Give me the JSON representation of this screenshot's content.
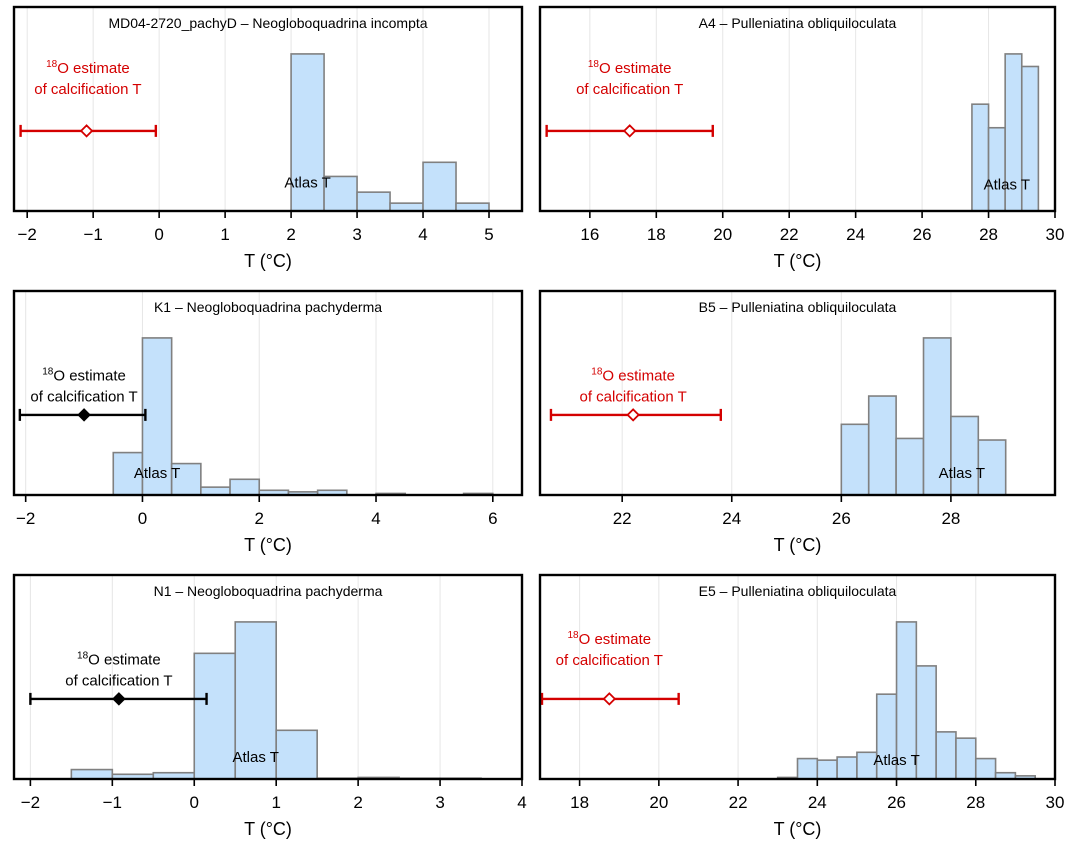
{
  "figure": {
    "background": "#ffffff"
  },
  "style": {
    "bar_fill": "#c4e1fb",
    "bar_stroke": "#808080",
    "red": "#d40000",
    "black": "#000000",
    "grid": "#e6e6e6"
  },
  "chart_data": [
    {
      "type": "bar",
      "title": "MD04-2720_pachyD – Neogloboquadrina incompta",
      "xlabel": "T (°C)",
      "xlim": [
        -2.2,
        5.5
      ],
      "xticks": [
        -2,
        -1,
        0,
        1,
        2,
        3,
        4,
        5
      ],
      "ymax": 1.0,
      "bins": [
        {
          "x0": 2.0,
          "x1": 2.5,
          "value": 1.0
        },
        {
          "x0": 2.5,
          "x1": 3.0,
          "value": 0.22
        },
        {
          "x0": 3.0,
          "x1": 3.5,
          "value": 0.12
        },
        {
          "x0": 3.5,
          "x1": 4.0,
          "value": 0.05
        },
        {
          "x0": 4.0,
          "x1": 4.5,
          "value": 0.31
        },
        {
          "x0": 4.5,
          "x1": 5.0,
          "value": 0.05
        }
      ],
      "bar_label": {
        "text": "Atlas T",
        "x": 2.25,
        "y": 0.18
      },
      "estimate": {
        "low": -2.1,
        "center": -1.1,
        "high": -0.05,
        "y": 0.51,
        "marker": "open",
        "color": "#d40000",
        "label_line1": "O estimate",
        "label_sup": "18",
        "label_line2": "of calcification T",
        "label_x": -1.08,
        "label_y": 0.88
      }
    },
    {
      "type": "bar",
      "title": "A4 – Pulleniatina obliquiloculata",
      "xlabel": "T (°C)",
      "xlim": [
        14.5,
        30.0
      ],
      "xticks": [
        16,
        18,
        20,
        22,
        24,
        26,
        28,
        30
      ],
      "ymax": 1.0,
      "bins": [
        {
          "x0": 27.5,
          "x1": 28.0,
          "value": 0.68
        },
        {
          "x0": 28.0,
          "x1": 28.5,
          "value": 0.53
        },
        {
          "x0": 28.5,
          "x1": 29.0,
          "value": 1.0
        },
        {
          "x0": 29.0,
          "x1": 29.5,
          "value": 0.92
        }
      ],
      "bar_label": {
        "text": "Atlas T",
        "x": 28.55,
        "y": 0.17
      },
      "estimate": {
        "low": 14.7,
        "center": 17.2,
        "high": 19.7,
        "y": 0.51,
        "marker": "open",
        "color": "#d40000",
        "label_line1": "O estimate",
        "label_sup": "18",
        "label_line2": "of calcification T",
        "label_x": 17.2,
        "label_y": 0.88
      }
    },
    {
      "type": "bar",
      "title": "K1 – Neogloboquadrina pachyderma",
      "xlabel": "T (°C)",
      "xlim": [
        -2.2,
        6.5
      ],
      "xticks": [
        -2,
        0,
        2,
        4,
        6
      ],
      "ymax": 1.0,
      "bins": [
        {
          "x0": -0.5,
          "x1": 0.0,
          "value": 0.27
        },
        {
          "x0": 0.0,
          "x1": 0.5,
          "value": 1.0
        },
        {
          "x0": 0.5,
          "x1": 1.0,
          "value": 0.2
        },
        {
          "x0": 1.0,
          "x1": 1.5,
          "value": 0.05
        },
        {
          "x0": 1.5,
          "x1": 2.0,
          "value": 0.1
        },
        {
          "x0": 2.0,
          "x1": 2.5,
          "value": 0.03
        },
        {
          "x0": 2.5,
          "x1": 3.0,
          "value": 0.02
        },
        {
          "x0": 3.0,
          "x1": 3.5,
          "value": 0.03
        },
        {
          "x0": 3.5,
          "x1": 4.0,
          "value": 0.0
        },
        {
          "x0": 4.0,
          "x1": 4.5,
          "value": 0.01
        },
        {
          "x0": 4.5,
          "x1": 5.0,
          "value": 0.0
        },
        {
          "x0": 5.0,
          "x1": 5.5,
          "value": 0.0
        },
        {
          "x0": 5.5,
          "x1": 6.0,
          "value": 0.01
        }
      ],
      "bar_label": {
        "text": "Atlas T",
        "x": 0.25,
        "y": 0.14
      },
      "estimate": {
        "low": -2.1,
        "center": -1.0,
        "high": 0.05,
        "y": 0.51,
        "marker": "filled",
        "color": "#000000",
        "label_line1": "O estimate",
        "label_sup": "18",
        "label_line2": "of calcification T",
        "label_x": -1.0,
        "label_y": 0.73
      }
    },
    {
      "type": "bar",
      "title": "B5 – Pulleniatina obliquiloculata",
      "xlabel": "T (°C)",
      "xlim": [
        20.5,
        29.9
      ],
      "xticks": [
        22,
        24,
        26,
        28
      ],
      "ymax": 1.0,
      "bins": [
        {
          "x0": 26.0,
          "x1": 26.5,
          "value": 0.45
        },
        {
          "x0": 26.5,
          "x1": 27.0,
          "value": 0.63
        },
        {
          "x0": 27.0,
          "x1": 27.5,
          "value": 0.36
        },
        {
          "x0": 27.5,
          "x1": 28.0,
          "value": 1.0
        },
        {
          "x0": 28.0,
          "x1": 28.5,
          "value": 0.5
        },
        {
          "x0": 28.5,
          "x1": 29.0,
          "value": 0.35
        }
      ],
      "bar_label": {
        "text": "Atlas T",
        "x": 28.2,
        "y": 0.14
      },
      "estimate": {
        "low": 20.7,
        "center": 22.2,
        "high": 23.8,
        "y": 0.51,
        "marker": "open",
        "color": "#d40000",
        "label_line1": "O estimate",
        "label_sup": "18",
        "label_line2": "of calcification T",
        "label_x": 22.2,
        "label_y": 0.73
      }
    },
    {
      "type": "bar",
      "title": "N1 – Neogloboquadrina pachyderma",
      "xlabel": "T (°C)",
      "xlim": [
        -2.2,
        4.0
      ],
      "xticks": [
        -2,
        -1,
        0,
        1,
        2,
        3,
        4
      ],
      "ymax": 1.0,
      "bins": [
        {
          "x0": -1.5,
          "x1": -1.0,
          "value": 0.06
        },
        {
          "x0": -1.0,
          "x1": -0.5,
          "value": 0.03
        },
        {
          "x0": -0.5,
          "x1": 0.0,
          "value": 0.04
        },
        {
          "x0": 0.0,
          "x1": 0.5,
          "value": 0.8
        },
        {
          "x0": 0.5,
          "x1": 1.0,
          "value": 1.0
        },
        {
          "x0": 1.0,
          "x1": 1.5,
          "value": 0.31
        },
        {
          "x0": 1.5,
          "x1": 2.0,
          "value": 0.005
        },
        {
          "x0": 2.0,
          "x1": 2.5,
          "value": 0.01
        },
        {
          "x0": 2.5,
          "x1": 3.0,
          "value": 0.005
        },
        {
          "x0": 3.0,
          "x1": 3.5,
          "value": 0.005
        }
      ],
      "bar_label": {
        "text": "Atlas T",
        "x": 0.75,
        "y": 0.14
      },
      "estimate": {
        "low": -2.0,
        "center": -0.92,
        "high": 0.15,
        "y": 0.51,
        "marker": "filled",
        "color": "#000000",
        "label_line1": "O estimate",
        "label_sup": "18",
        "label_line2": "of calcification T",
        "label_x": -0.92,
        "label_y": 0.73
      }
    },
    {
      "type": "bar",
      "title": "E5 – Pulleniatina obliquiloculata",
      "xlabel": "T (°C)",
      "xlim": [
        17.0,
        30.0
      ],
      "xticks": [
        18,
        20,
        22,
        24,
        26,
        28,
        30
      ],
      "ymax": 1.0,
      "bins": [
        {
          "x0": 23.0,
          "x1": 23.5,
          "value": 0.01
        },
        {
          "x0": 23.5,
          "x1": 24.0,
          "value": 0.13
        },
        {
          "x0": 24.0,
          "x1": 24.5,
          "value": 0.12
        },
        {
          "x0": 24.5,
          "x1": 25.0,
          "value": 0.14
        },
        {
          "x0": 25.0,
          "x1": 25.5,
          "value": 0.17
        },
        {
          "x0": 25.5,
          "x1": 26.0,
          "value": 0.54
        },
        {
          "x0": 26.0,
          "x1": 26.5,
          "value": 1.0
        },
        {
          "x0": 26.5,
          "x1": 27.0,
          "value": 0.72
        },
        {
          "x0": 27.0,
          "x1": 27.5,
          "value": 0.3
        },
        {
          "x0": 27.5,
          "x1": 28.0,
          "value": 0.26
        },
        {
          "x0": 28.0,
          "x1": 28.5,
          "value": 0.13
        },
        {
          "x0": 28.5,
          "x1": 29.0,
          "value": 0.04
        },
        {
          "x0": 29.0,
          "x1": 29.5,
          "value": 0.02
        }
      ],
      "bar_label": {
        "text": "Atlas T",
        "x": 26.0,
        "y": 0.12
      },
      "estimate": {
        "low": 17.05,
        "center": 18.75,
        "high": 20.5,
        "y": 0.51,
        "marker": "open",
        "color": "#d40000",
        "label_line1": "O estimate",
        "label_sup": "18",
        "label_line2": "of calcification T",
        "label_x": 18.75,
        "label_y": 0.86
      }
    }
  ]
}
